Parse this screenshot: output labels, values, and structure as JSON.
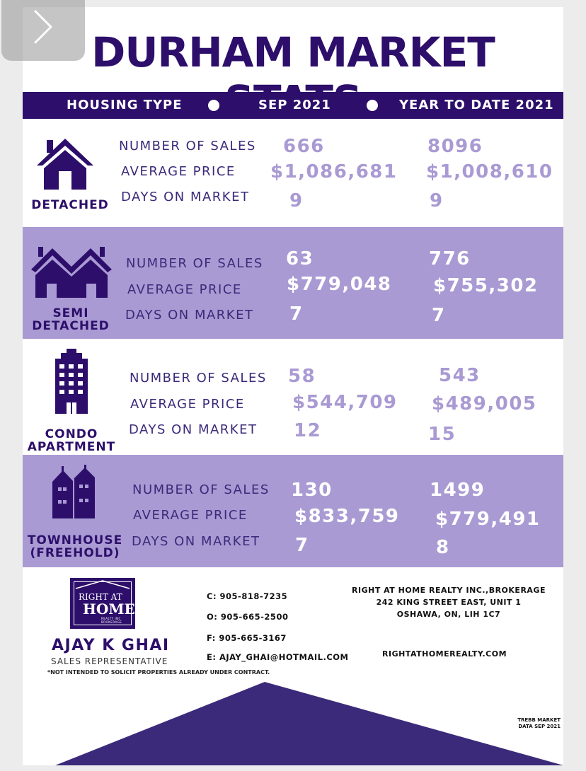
{
  "title": "DURHAM MARKET STATS",
  "header": {
    "col1": "HOUSING TYPE",
    "col2": "SEP 2021",
    "col3": "YEAR TO DATE 2021"
  },
  "metric_labels": {
    "sales": "NUMBER OF SALES",
    "price": "AVERAGE PRICE",
    "days": "DAYS ON MARKET"
  },
  "rows": [
    {
      "type": "DETACHED",
      "icon": "house-icon",
      "sep": {
        "sales": "666",
        "price": "$1,086,681",
        "days": "9"
      },
      "ytd": {
        "sales": "8096",
        "price": "$1,008,610",
        "days": "9"
      }
    },
    {
      "type_line1": "SEMI",
      "type_line2": "DETACHED",
      "icon": "semi-detached-house-icon",
      "sep": {
        "sales": "63",
        "price": "$779,048",
        "days": "7"
      },
      "ytd": {
        "sales": "776",
        "price": "$755,302",
        "days": "7"
      }
    },
    {
      "type_line1": "CONDO",
      "type_line2": "APARTMENT",
      "icon": "apartment-building-icon",
      "sep": {
        "sales": "58",
        "price": "$544,709",
        "days": "12"
      },
      "ytd": {
        "sales": "543",
        "price": "$489,005",
        "days": "15"
      }
    },
    {
      "type_line1": "TOWNHOUSE",
      "type_line2": "(FREEHOLD)",
      "icon": "townhouse-icon",
      "sep": {
        "sales": "130",
        "price": "$833,759",
        "days": "7"
      },
      "ytd": {
        "sales": "1499",
        "price": "$779,491",
        "days": "8"
      }
    }
  ],
  "footer": {
    "logo": {
      "line1": "RIGHT AT",
      "line2": "HOME",
      "line3": "REALTY INC BROKERAGE"
    },
    "agent_name": "AJAY K GHAI",
    "agent_role": "SALES REPRESENTATIVE",
    "disclaimer": "*NOT INTENDED TO SOLICIT PROPERTIES ALREADY UNDER CONTRACT.",
    "cell": "C: 905-818-7235",
    "office": "O: 905-665-2500",
    "fax": "F: 905-665-3167",
    "email": "E: AJAY_GHAI@HOTMAIL.COM",
    "brokerage_line1": "RIGHT AT HOME REALTY INC.,BROKERAGE",
    "brokerage_line2": "242 KING STREET EAST, UNIT 1",
    "brokerage_line3": "OSHAWA, ON, LIH 1C7",
    "website": "RIGHTATHOMEREALTY.COM",
    "source_line1": "TREBB MARKET",
    "source_line2": "DATA SEP 2021"
  },
  "colors": {
    "brand_dark": "#2d0f6b",
    "brand_light": "#a99ad3",
    "white": "#ffffff"
  }
}
